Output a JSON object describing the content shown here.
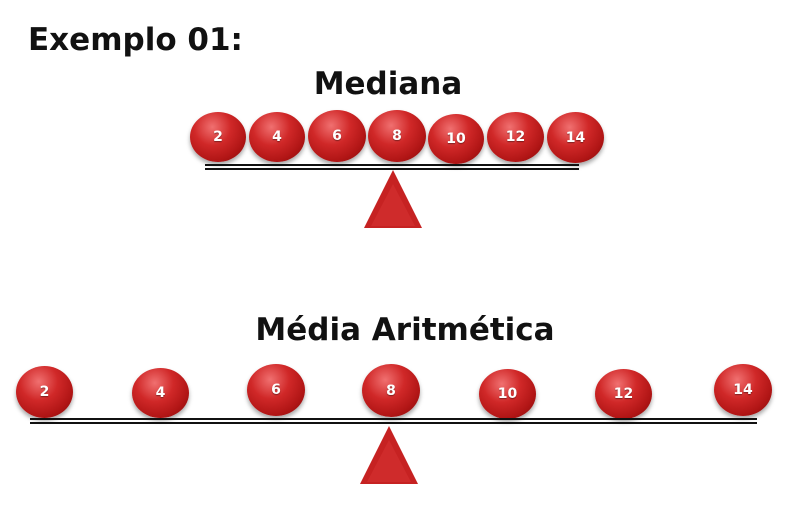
{
  "example_title": "Exemplo 01:",
  "median": {
    "title": "Mediana",
    "values": [
      "2",
      "4",
      "6",
      "8",
      "10",
      "12",
      "14"
    ]
  },
  "mean": {
    "title": "Média Aritmética",
    "values": [
      "2",
      "4",
      "6",
      "8",
      "10",
      "12",
      "14"
    ]
  },
  "colors": {
    "ball": "#c61f1f",
    "fulcrum": "#c62222",
    "beam": "#111111",
    "text": "#111111"
  }
}
